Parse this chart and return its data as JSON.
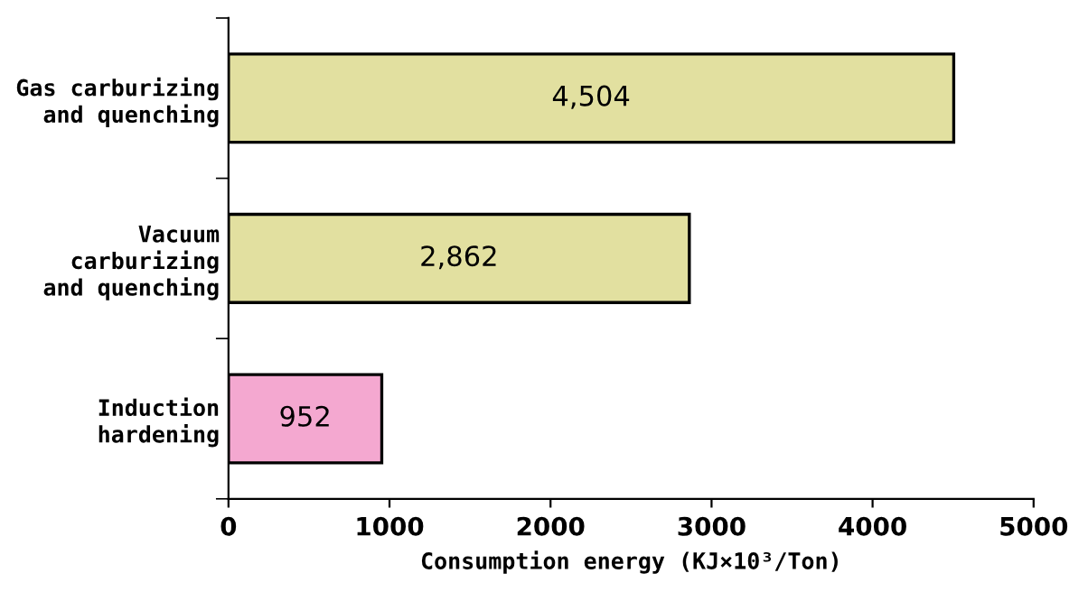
{
  "chart_data": {
    "type": "bar",
    "orientation": "horizontal",
    "categories": [
      "Gas carburizing\nand quenching",
      "Vacuum\ncarburizing\nand quenching",
      "Induction\nhardening"
    ],
    "values": [
      4504,
      2862,
      952
    ],
    "colors": [
      "#e2e0a0",
      "#e2e0a0",
      "#f4a8d0"
    ],
    "value_labels": [
      "4,504",
      "2,862",
      "952"
    ],
    "xlabel": "Consumption energy (KJ×10³/Ton)",
    "xlim": [
      0,
      5000
    ],
    "xticks": [
      0,
      1000,
      2000,
      3000,
      4000,
      5000
    ],
    "grid": false,
    "legend": false
  }
}
